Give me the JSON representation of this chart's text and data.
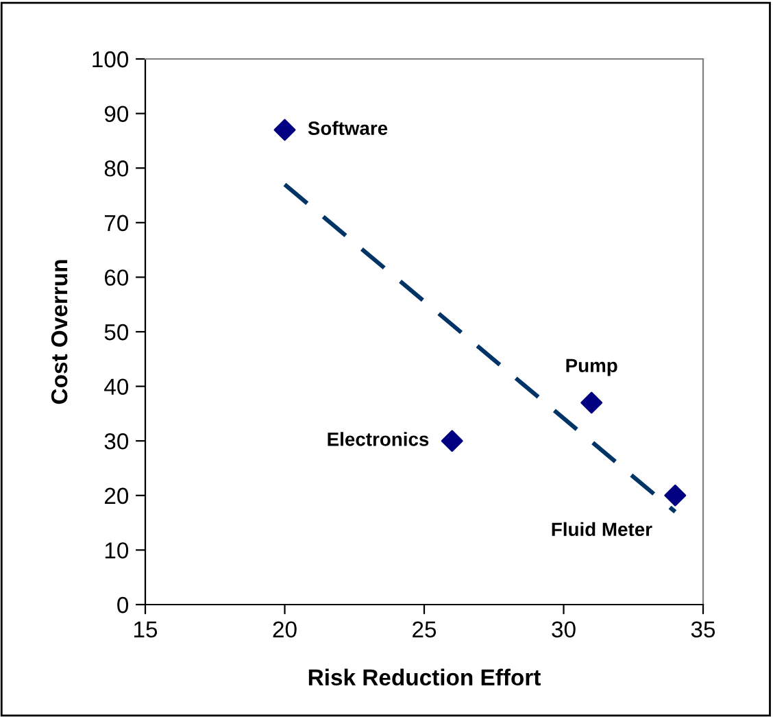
{
  "chart_data": {
    "type": "scatter",
    "xlabel": "Risk Reduction Effort",
    "ylabel": "Cost Overrun",
    "xlim": [
      15,
      35
    ],
    "ylim": [
      0,
      100
    ],
    "xticks": [
      15,
      20,
      25,
      30,
      35
    ],
    "yticks": [
      0,
      10,
      20,
      30,
      40,
      50,
      60,
      70,
      80,
      90,
      100
    ],
    "grid": false,
    "legend": false,
    "marker": "diamond",
    "series": [
      {
        "color": "#000080",
        "x": [
          20,
          26,
          31,
          34
        ],
        "values": [
          87,
          30,
          37,
          20
        ]
      },
      {
        "type": "line",
        "color": "#003366",
        "line_style": "dashed",
        "marker": "none",
        "x": [
          20,
          34
        ],
        "values": [
          77,
          17
        ]
      }
    ],
    "annotations": [
      {
        "text": "Software",
        "x": 20,
        "y": 87
      },
      {
        "text": "Electronics",
        "x": 26,
        "y": 30
      },
      {
        "text": "Pump",
        "x": 31,
        "y": 37
      },
      {
        "text": "Fluid Meter",
        "x": 34,
        "y": 20
      }
    ]
  }
}
